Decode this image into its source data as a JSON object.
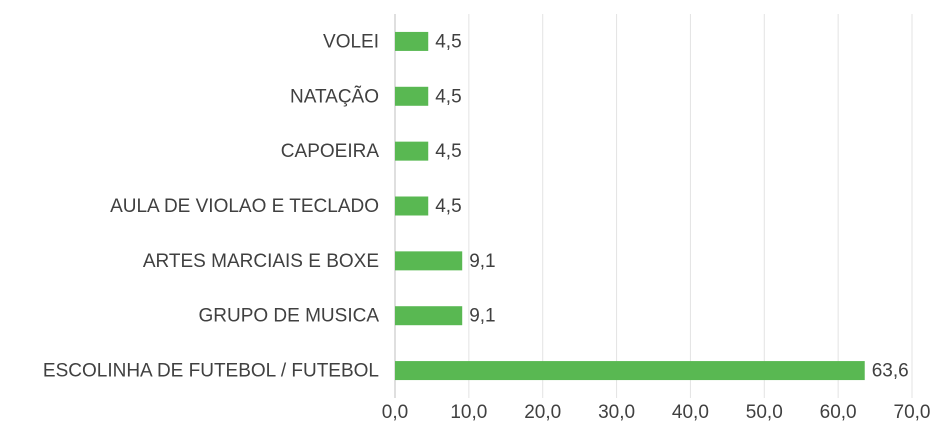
{
  "chart_data": {
    "type": "bar",
    "orientation": "horizontal",
    "categories": [
      "VOLEI",
      "NATAÇÃO",
      "CAPOEIRA",
      "AULA DE VIOLAO E TECLADO",
      "ARTES MARCIAIS E BOXE",
      "GRUPO DE MUSICA",
      "ESCOLINHA DE FUTEBOL / FUTEBOL"
    ],
    "values": [
      4.5,
      4.5,
      4.5,
      4.5,
      9.1,
      9.1,
      63.6
    ],
    "value_labels": [
      "4,5",
      "4,5",
      "4,5",
      "4,5",
      "9,1",
      "9,1",
      "63,6"
    ],
    "color": "#59b852",
    "xlim": [
      0,
      70
    ],
    "xticks": [
      {
        "value": 0,
        "label": "0,0"
      },
      {
        "value": 10,
        "label": "10,0"
      },
      {
        "value": 20,
        "label": "20,0"
      },
      {
        "value": 30,
        "label": "30,0"
      },
      {
        "value": 40,
        "label": "40,0"
      },
      {
        "value": 50,
        "label": "50,0"
      },
      {
        "value": 60,
        "label": "60,0"
      },
      {
        "value": 70,
        "label": "70,0"
      }
    ],
    "grid": true
  }
}
